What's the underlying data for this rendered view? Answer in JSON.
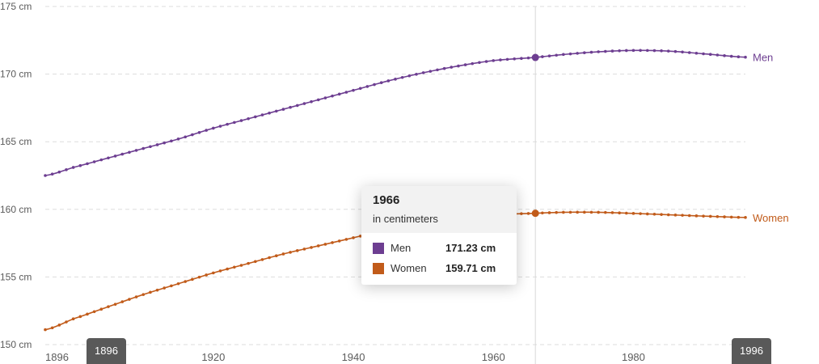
{
  "colors": {
    "men": "#6d3e91",
    "women": "#c15b1a"
  },
  "chart_data": {
    "type": "line",
    "title": "",
    "xlabel": "",
    "ylabel": "",
    "unit": "cm",
    "xlim": [
      1896,
      1996
    ],
    "ylim": [
      150,
      175
    ],
    "yticks": [
      150,
      155,
      160,
      165,
      170,
      175
    ],
    "ytick_labels": [
      "150 cm",
      "155 cm",
      "160 cm",
      "165 cm",
      "170 cm",
      "175 cm"
    ],
    "xticks": [
      1896,
      1920,
      1940,
      1960,
      1980,
      1996
    ],
    "grid": true,
    "highlight_year": 1966,
    "series": [
      {
        "name": "Men",
        "color": "#6d3e91",
        "x": [
          1896,
          1900,
          1905,
          1910,
          1915,
          1920,
          1925,
          1930,
          1935,
          1940,
          1945,
          1950,
          1955,
          1960,
          1966,
          1970,
          1975,
          1980,
          1985,
          1990,
          1996
        ],
        "y": [
          162.5,
          163.1,
          163.8,
          164.5,
          165.2,
          166.0,
          166.7,
          167.4,
          168.1,
          168.8,
          169.5,
          170.1,
          170.6,
          171.0,
          171.23,
          171.45,
          171.65,
          171.75,
          171.7,
          171.5,
          171.25
        ]
      },
      {
        "name": "Women",
        "color": "#c15b1a",
        "x": [
          1896,
          1900,
          1905,
          1910,
          1915,
          1920,
          1925,
          1930,
          1935,
          1940,
          1945,
          1950,
          1955,
          1960,
          1966,
          1970,
          1975,
          1980,
          1985,
          1990,
          1996
        ],
        "y": [
          151.1,
          151.9,
          152.8,
          153.7,
          154.5,
          155.3,
          156.0,
          156.7,
          157.3,
          157.9,
          158.5,
          159.0,
          159.4,
          159.6,
          159.71,
          159.78,
          159.78,
          159.7,
          159.6,
          159.5,
          159.4
        ]
      }
    ]
  },
  "tooltip": {
    "year": "1966",
    "unit_note": "in centimeters",
    "rows": [
      {
        "name": "Men",
        "value": "171.23 cm"
      },
      {
        "name": "Women",
        "value": "159.71 cm"
      }
    ]
  },
  "time_range": {
    "start_label": "1896",
    "end_label": "1996"
  }
}
